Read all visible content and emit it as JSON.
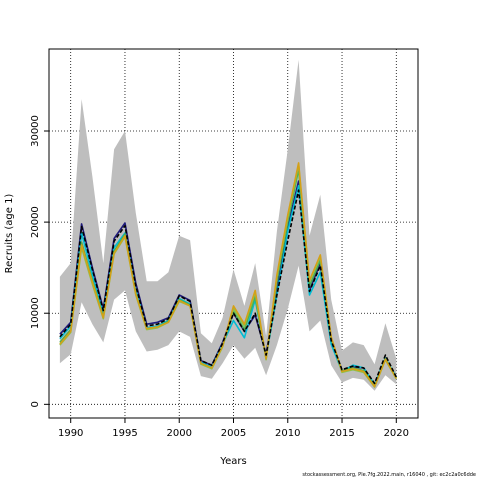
{
  "chart_data": {
    "type": "line",
    "title": "",
    "xlabel": "Years",
    "ylabel": "Recruits (age 1)",
    "xlim": [
      1988,
      2022
    ],
    "ylim": [
      -1500,
      39000
    ],
    "x_ticks": [
      1990,
      1995,
      2000,
      2005,
      2010,
      2015,
      2020
    ],
    "y_ticks": [
      0,
      10000,
      20000,
      30000
    ],
    "grid": "dotted",
    "legend": "none",
    "x": [
      1989,
      1990,
      1991,
      1992,
      1993,
      1994,
      1995,
      1996,
      1997,
      1998,
      1999,
      2000,
      2001,
      2002,
      2003,
      2004,
      2005,
      2006,
      2007,
      2008,
      2009,
      2010,
      2011,
      2012,
      2013,
      2014,
      2015,
      2016,
      2017,
      2018,
      2019,
      2020
    ],
    "band": {
      "color": "#bebebe",
      "lower": [
        4500,
        5500,
        11200,
        8800,
        6800,
        11500,
        12500,
        8000,
        5800,
        6000,
        6500,
        8000,
        7400,
        3100,
        2800,
        4500,
        6500,
        5000,
        6200,
        3200,
        6500,
        10500,
        15200,
        8000,
        9200,
        4300,
        2400,
        2900,
        2700,
        1500,
        3200,
        2200
      ],
      "upper": [
        14000,
        15500,
        33500,
        25000,
        15500,
        28000,
        30000,
        21000,
        13500,
        13500,
        14500,
        18500,
        18000,
        7800,
        6700,
        9500,
        14800,
        10800,
        15500,
        7500,
        19000,
        28000,
        37800,
        18500,
        23000,
        11500,
        5900,
        6800,
        6500,
        4400,
        8900,
        5000
      ]
    },
    "series": [
      {
        "color": "#1f1a7a",
        "values": [
          7700,
          9000,
          19800,
          15000,
          10500,
          18200,
          19900,
          13300,
          8800,
          9000,
          9500,
          12000,
          11400,
          4800,
          4300,
          6800,
          10000,
          8000,
          9800,
          5500,
          12500,
          19500,
          24500,
          12500,
          15500,
          7000,
          3600,
          4100,
          4000,
          2100,
          5000,
          3000
        ]
      },
      {
        "color": "#00bcd4",
        "values": [
          7200,
          8600,
          18800,
          14200,
          10000,
          17200,
          18800,
          12500,
          8400,
          8600,
          9200,
          11600,
          11000,
          4600,
          4100,
          6600,
          9200,
          7300,
          11500,
          5200,
          12000,
          19000,
          24000,
          12000,
          14500,
          6600,
          3600,
          4300,
          4000,
          2200,
          5100,
          3000
        ]
      },
      {
        "color": "#4caf50",
        "values": [
          6800,
          8200,
          17800,
          13600,
          9600,
          16800,
          18700,
          12200,
          8300,
          8500,
          9100,
          11500,
          10900,
          4500,
          4000,
          6400,
          10200,
          8200,
          11800,
          5000,
          13500,
          20000,
          25800,
          13000,
          15800,
          7200,
          3700,
          4000,
          3700,
          2000,
          5000,
          2900
        ]
      },
      {
        "color": "#8bc34a",
        "values": [
          6500,
          7900,
          17200,
          13200,
          9400,
          16500,
          18400,
          12000,
          8200,
          8400,
          9000,
          11300,
          10800,
          4400,
          3900,
          6300,
          10500,
          8600,
          12300,
          4900,
          14000,
          20500,
          26300,
          13500,
          16200,
          7300,
          3500,
          3800,
          3500,
          1900,
          4900,
          2800
        ]
      },
      {
        "color": "#d4a017",
        "values": [
          6600,
          8000,
          17500,
          13400,
          9500,
          16600,
          18500,
          12100,
          8300,
          8500,
          9000,
          11400,
          10800,
          4500,
          4000,
          6400,
          10800,
          8800,
          12500,
          5000,
          14200,
          20800,
          26500,
          13600,
          16400,
          7400,
          3600,
          3900,
          3600,
          1950,
          4950,
          2850
        ]
      },
      {
        "color": "#000000",
        "dash": true,
        "values": [
          7400,
          8800,
          19500,
          14800,
          10300,
          17900,
          19600,
          13000,
          8600,
          8800,
          9400,
          11900,
          11300,
          4800,
          4300,
          6700,
          10000,
          8000,
          10000,
          5400,
          12000,
          18000,
          23500,
          12400,
          15200,
          7000,
          3800,
          4200,
          4000,
          2300,
          5400,
          3000
        ]
      }
    ]
  },
  "footer": "stockassessment.org,  Ple.7fg.2022.main,  r16040 ,  git:  ec2c2a0c6dde"
}
